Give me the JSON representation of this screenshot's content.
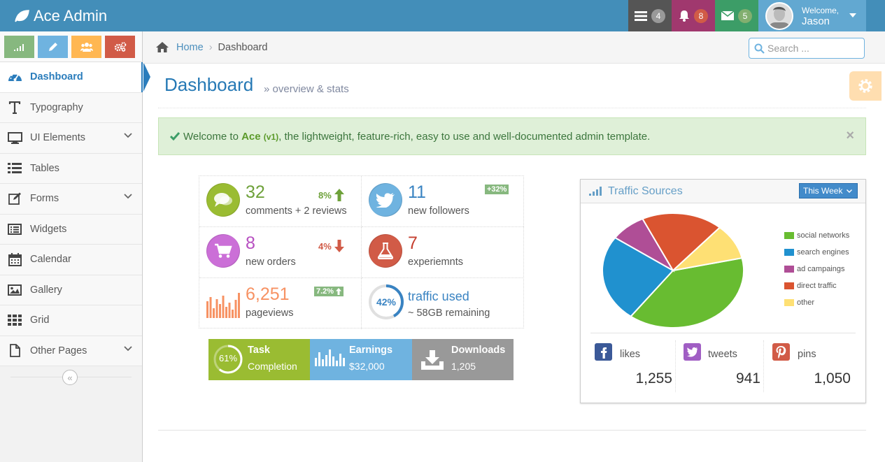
{
  "navbar": {
    "brand": "Ace Admin",
    "tasks_count": "4",
    "notifications_count": "8",
    "messages_count": "5",
    "welcome": "Welcome,",
    "user_name": "Jason"
  },
  "sidebar": {
    "items": [
      {
        "label": "Dashboard"
      },
      {
        "label": "Typography"
      },
      {
        "label": "UI Elements"
      },
      {
        "label": "Tables"
      },
      {
        "label": "Forms"
      },
      {
        "label": "Widgets"
      },
      {
        "label": "Calendar"
      },
      {
        "label": "Gallery"
      },
      {
        "label": "Grid"
      },
      {
        "label": "Other Pages"
      }
    ],
    "collapse_icon": "«"
  },
  "breadcrumb": {
    "home": "Home",
    "current": "Dashboard",
    "separator": "›"
  },
  "search": {
    "placeholder": "Search ..."
  },
  "page": {
    "title": "Dashboard",
    "subtitle": "» overview & stats"
  },
  "alert": {
    "pre": "Welcome to ",
    "product": "Ace",
    "version": "(v1)",
    "post": ", the lightweight, feature-rich, easy to use and well-documented admin template.",
    "close": "×"
  },
  "infoboxes": {
    "comments": {
      "number": "32",
      "caption": "comments + 2 reviews",
      "stat": "8%"
    },
    "followers": {
      "number": "11",
      "caption": "new followers",
      "badge": "+32%"
    },
    "orders": {
      "number": "8",
      "caption": "new orders",
      "stat": "4%"
    },
    "experiments": {
      "number": "7",
      "caption": "experiemnts"
    },
    "pageviews": {
      "number": "6,251",
      "caption": "pageviews",
      "badge": "7.2%"
    },
    "traffic": {
      "percent": "42%",
      "percent_value": 42,
      "number": "traffic used",
      "caption": "~ 58GB remaining"
    }
  },
  "tiles": {
    "task": {
      "title": "Task",
      "subtitle": "Completion",
      "percent": "61%",
      "percent_value": 61
    },
    "earnings": {
      "title": "Earnings",
      "value": "$32,000"
    },
    "downloads": {
      "title": "Downloads",
      "value": "1,205"
    }
  },
  "traffic_widget": {
    "title": "Traffic Sources",
    "range": "This Week",
    "social": {
      "likes": {
        "label": "likes",
        "value": "1,255"
      },
      "tweets": {
        "label": "tweets",
        "value": "941"
      },
      "pins": {
        "label": "pins",
        "value": "1,050"
      }
    }
  },
  "chart_data": {
    "type": "pie",
    "labels": [
      "social networks",
      "search engines",
      "ad campaings",
      "direct traffic",
      "other"
    ],
    "values": [
      38.7,
      24.5,
      8.2,
      18.6,
      10.0
    ],
    "colors": [
      "#68bc31",
      "#2091cf",
      "#af4e96",
      "#da5430",
      "#fee074"
    ],
    "legend_position": "right"
  },
  "colors": {
    "navbar": "#438eb9",
    "primary": "#2679b5",
    "green": "#87b87f",
    "blue": "#6fb3e0",
    "purple": "#cb6fd7",
    "red": "#d15b47",
    "orange": "#f79263",
    "tile_green": "#9abc32",
    "tile_blue": "#6fb3e0",
    "tile_grey": "#999999"
  }
}
